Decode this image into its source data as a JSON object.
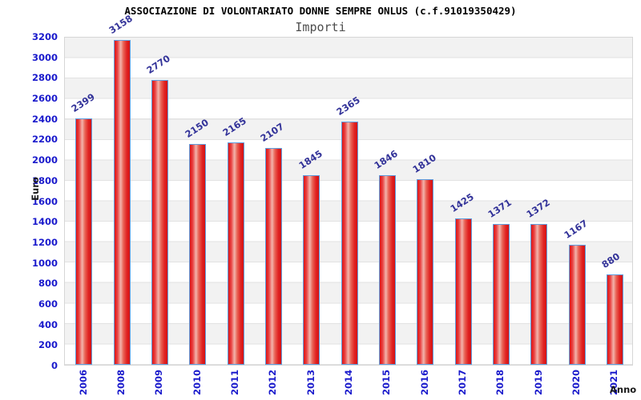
{
  "chart_data": {
    "type": "bar",
    "title": "ASSOCIAZIONE DI VOLONTARIATO DONNE SEMPRE ONLUS (c.f.91019350429)",
    "subtitle": "Importi",
    "ylabel": "Euro",
    "xlabel": "Anno",
    "categories": [
      "2006",
      "2008",
      "2009",
      "2010",
      "2011",
      "2012",
      "2013",
      "2014",
      "2015",
      "2016",
      "2017",
      "2018",
      "2019",
      "2020",
      "2021"
    ],
    "values": [
      2399,
      3158,
      2770,
      2150,
      2165,
      2107,
      1845,
      2365,
      1846,
      1810,
      1425,
      1371,
      1372,
      1167,
      880
    ],
    "ylim": [
      0,
      3200
    ],
    "y_ticks": [
      0,
      200,
      400,
      600,
      800,
      1000,
      1200,
      1400,
      1600,
      1800,
      2000,
      2200,
      2400,
      2600,
      2800,
      3000,
      3200
    ],
    "grid": "horizontal-bands",
    "legend": "none",
    "colors": {
      "tick_label": "#1a1acc",
      "value_label": "#333399",
      "bar_border": "#5f9ddf",
      "bar_edge_red": "#df1515",
      "bar_center_pink": "#f2b4ac",
      "band_gray": "#f2f2f2",
      "gridline": "#e2e2e2",
      "subtitle_gray": "#4d4d4d",
      "title_black": "#000000"
    }
  }
}
